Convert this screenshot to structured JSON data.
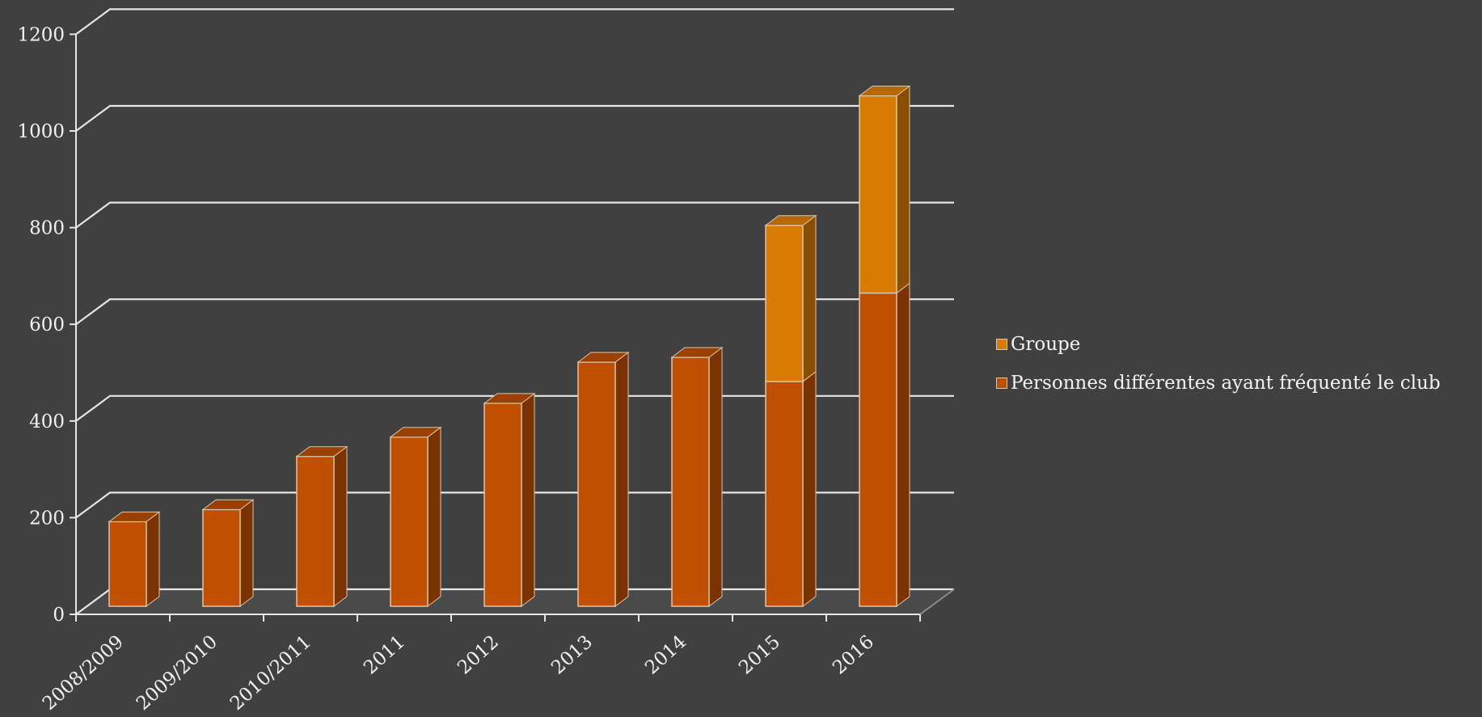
{
  "chart_data": {
    "type": "bar",
    "stacked": true,
    "three_d": true,
    "categories": [
      "2008/2009",
      "2009/2010",
      "2010/2011",
      "2011",
      "2012",
      "2013",
      "2014",
      "2015",
      "2016"
    ],
    "series": [
      {
        "name": "Personnes différentes ayant fréquenté le club",
        "values": [
          175,
          200,
          310,
          350,
          420,
          505,
          515,
          465,
          648
        ],
        "color": "#c04f00",
        "side_color": "#7a3300",
        "top_color": "#9a4000"
      },
      {
        "name": "Groupe",
        "values": [
          0,
          0,
          0,
          0,
          0,
          0,
          0,
          323,
          408
        ],
        "color": "#d97b00",
        "side_color": "#8a4e00",
        "top_color": "#b86800"
      }
    ],
    "yticks": [
      "0",
      "200",
      "400",
      "600",
      "800",
      "1000",
      "1200"
    ],
    "ylim": [
      0,
      1200
    ],
    "grid": true,
    "legend_position": "right",
    "legend": [
      "Groupe",
      "Personnes différentes ayant fréquenté le club"
    ],
    "title": "",
    "xlabel": "",
    "ylabel": "",
    "background": "#404040",
    "gridline_color": "#e6e6e6",
    "bar_edge_color": "#d9c6b0"
  }
}
